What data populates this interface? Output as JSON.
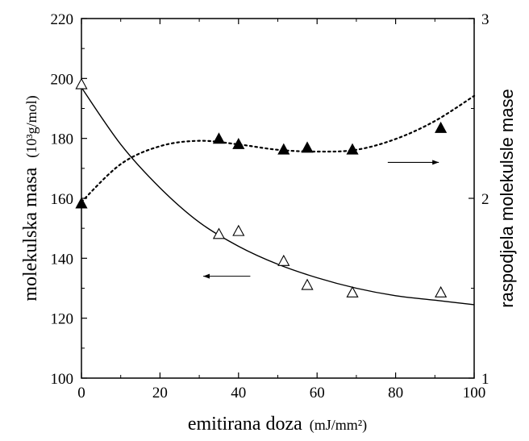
{
  "chart_data": {
    "type": "scatter",
    "xlabel": "emitirana doza",
    "xlabel_unit": "(mJ/mm²)",
    "ylabel_left": "molekulska masa",
    "ylabel_left_unit": "(10³g/mol)",
    "ylabel_right": "raspodjela molekulsle mase",
    "xlim": [
      0,
      100
    ],
    "ylim_left": [
      100,
      220
    ],
    "ylim_right": [
      1,
      3
    ],
    "x_ticks": [
      "0",
      "20",
      "40",
      "60",
      "80",
      "100"
    ],
    "y_left_ticks": [
      "100",
      "120",
      "140",
      "160",
      "180",
      "200",
      "220"
    ],
    "y_right_ticks": [
      "1",
      "2",
      "3"
    ],
    "grid": false,
    "series": [
      {
        "marker": "open-triangle",
        "axis": "left",
        "points": [
          [
            0,
            198
          ],
          [
            35,
            148
          ],
          [
            40,
            149
          ],
          [
            51.5,
            139
          ],
          [
            57.5,
            131
          ],
          [
            69,
            128.5
          ],
          [
            91.5,
            128.5
          ]
        ]
      },
      {
        "marker": "filled-triangle",
        "axis": "right",
        "points": [
          [
            0,
            1.97
          ],
          [
            35,
            2.33
          ],
          [
            40,
            2.3
          ],
          [
            51.5,
            2.27
          ],
          [
            57.5,
            2.28
          ],
          [
            69,
            2.27
          ],
          [
            91.5,
            2.39
          ]
        ]
      }
    ],
    "fit_curves": [
      {
        "axis": "left",
        "style": "solid",
        "points": [
          [
            0,
            197
          ],
          [
            10,
            178
          ],
          [
            20,
            163.5
          ],
          [
            30,
            152
          ],
          [
            40,
            144
          ],
          [
            50,
            138
          ],
          [
            60,
            133.5
          ],
          [
            70,
            130
          ],
          [
            80,
            127.5
          ],
          [
            90,
            126
          ],
          [
            100,
            124.5
          ]
        ]
      },
      {
        "axis": "right",
        "style": "dotted",
        "points": [
          [
            0,
            1.98
          ],
          [
            10,
            2.19
          ],
          [
            20,
            2.29
          ],
          [
            30,
            2.32
          ],
          [
            40,
            2.3
          ],
          [
            50,
            2.27
          ],
          [
            60,
            2.26
          ],
          [
            70,
            2.27
          ],
          [
            80,
            2.33
          ],
          [
            90,
            2.43
          ],
          [
            100,
            2.57
          ]
        ]
      }
    ],
    "annotations": [
      {
        "type": "arrow",
        "direction": "left",
        "x_from": 43,
        "x_to": 31,
        "axis": "left",
        "y": 134
      },
      {
        "type": "arrow",
        "direction": "right",
        "x_from": 78,
        "x_to": 91,
        "axis": "right",
        "y": 2.2
      }
    ]
  }
}
